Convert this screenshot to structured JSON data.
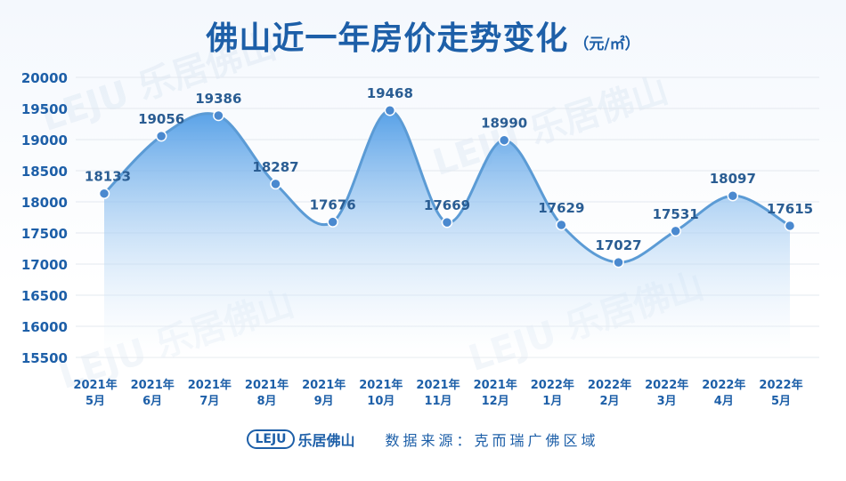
{
  "title": "佛山近一年房价走势变化",
  "unit": "（元/㎡）",
  "footer": {
    "logo_text": "LEJU",
    "brand": "乐居佛山",
    "source": "数据来源：克而瑞广佛区域"
  },
  "watermark": "LEJU 乐居佛山",
  "colors": {
    "line": "#5b9bd5",
    "point": "#4a89cf",
    "text": "#1d5fa8",
    "fill_top": "#4f9ce6",
    "fill_bottom": "#ffffff"
  },
  "chart_data": {
    "type": "area",
    "title": "佛山近一年房价走势变化",
    "categories": [
      [
        "2021年",
        "5月"
      ],
      [
        "2021年",
        "6月"
      ],
      [
        "2021年",
        "7月"
      ],
      [
        "2021年",
        "8月"
      ],
      [
        "2021年",
        "9月"
      ],
      [
        "2021年",
        "10月"
      ],
      [
        "2021年",
        "11月"
      ],
      [
        "2021年",
        "12月"
      ],
      [
        "2022年",
        "1月"
      ],
      [
        "2022年",
        "2月"
      ],
      [
        "2022年",
        "3月"
      ],
      [
        "2022年",
        "4月"
      ],
      [
        "2022年",
        "5月"
      ]
    ],
    "values": [
      18133,
      19056,
      19386,
      18287,
      17676,
      19468,
      17669,
      18990,
      17629,
      17027,
      17531,
      18097,
      17615
    ],
    "yticks": [
      15500,
      16000,
      16500,
      17000,
      17500,
      18000,
      18500,
      19000,
      19500,
      20000
    ],
    "ylim": [
      15500,
      20000
    ],
    "grid": true,
    "smooth": true
  }
}
